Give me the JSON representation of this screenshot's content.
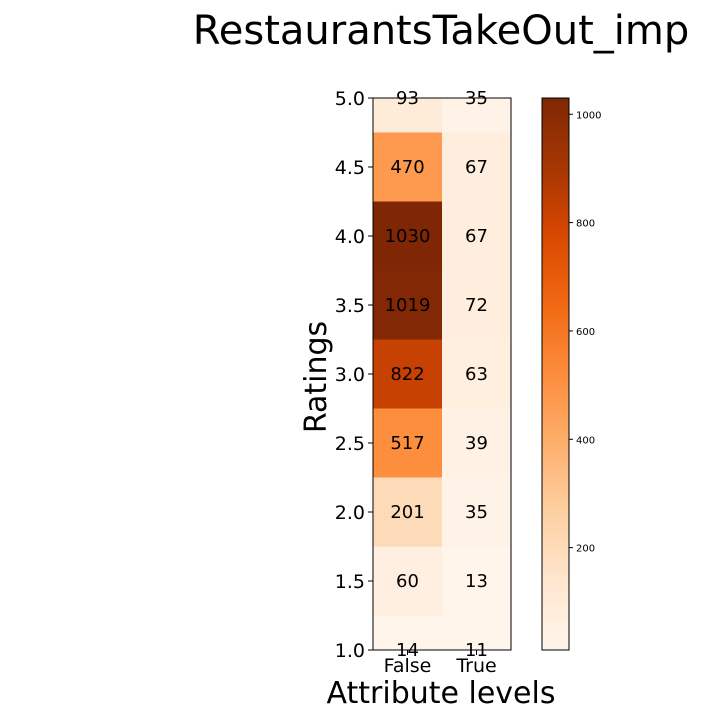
{
  "chart_data": {
    "type": "heatmap",
    "title": "RestaurantsTakeOut_imp",
    "xlabel": "Attribute levels",
    "ylabel": "Ratings",
    "x_categories": [
      "False",
      "True"
    ],
    "y_categories": [
      "5.0",
      "4.5",
      "4.0",
      "3.5",
      "3.0",
      "2.5",
      "2.0",
      "1.5",
      "1.0"
    ],
    "y_ticks": [
      "1.0",
      "1.5",
      "2.0",
      "2.5",
      "3.0",
      "3.5",
      "4.0",
      "4.5",
      "5.0"
    ],
    "values": [
      [
        93,
        35
      ],
      [
        470,
        67
      ],
      [
        1030,
        67
      ],
      [
        1019,
        72
      ],
      [
        822,
        63
      ],
      [
        517,
        39
      ],
      [
        201,
        35
      ],
      [
        60,
        13
      ],
      [
        14,
        11
      ]
    ],
    "colorbar": {
      "colormap": "Oranges",
      "min": 11,
      "max": 1030,
      "ticks": [
        "200",
        "400",
        "600",
        "800",
        "1000"
      ]
    },
    "grid": false
  }
}
